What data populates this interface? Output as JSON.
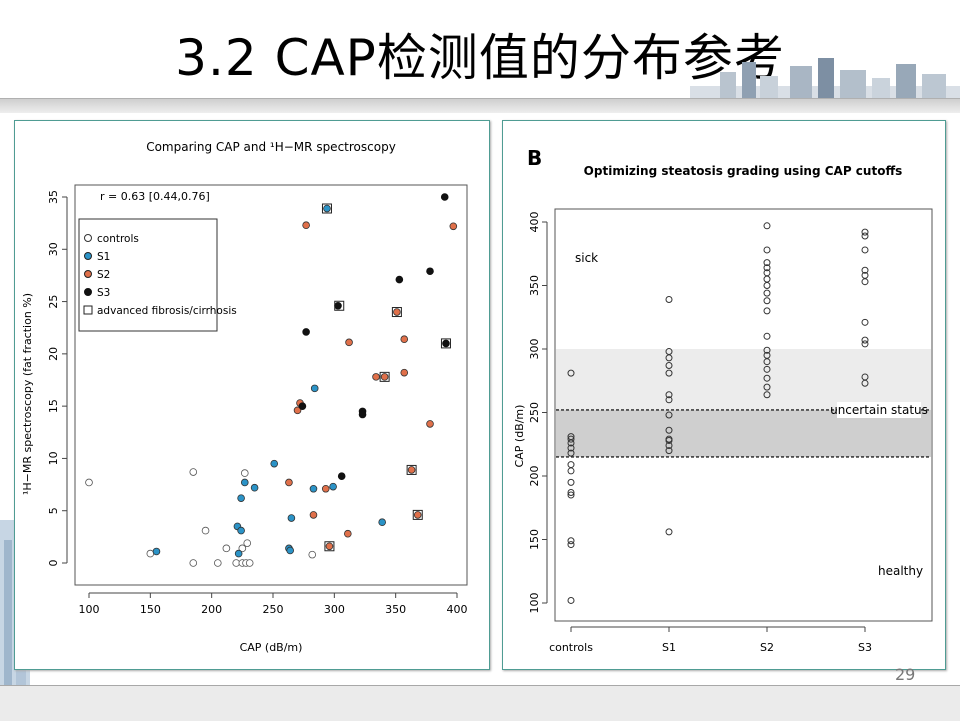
{
  "slide": {
    "title": "3.2 CAP检测值的分布参考",
    "page_number": "29"
  },
  "colors": {
    "controls": "#ffffff",
    "S1": "#2b93c7",
    "S2": "#e0704a",
    "S3": "#111111",
    "shade_light": "#ececec",
    "shade_dark": "#cfcfcf"
  },
  "chart_data": [
    {
      "type": "scatter",
      "title": "Comparing CAP and ¹H−MR spectroscopy",
      "xlabel": "CAP (dB/m)",
      "ylabel": "¹H−MR spectroscopy (fat fraction %)",
      "xlim": [
        100,
        400
      ],
      "ylim": [
        0,
        35
      ],
      "xticks": [
        100,
        150,
        200,
        250,
        300,
        350,
        400
      ],
      "yticks": [
        0,
        5,
        10,
        15,
        20,
        25,
        30,
        35
      ],
      "annotation": "r = 0.63  [0.44,0.76]",
      "legend_position": "top-left",
      "legend": [
        "controls",
        "S1",
        "S2",
        "S3",
        "advanced fibrosis/cirrhosis"
      ],
      "series": [
        {
          "name": "controls",
          "points": [
            [
              100,
              7.7
            ],
            [
              150,
              0.9
            ],
            [
              185,
              8.7
            ],
            [
              185,
              0
            ],
            [
              195,
              3.1
            ],
            [
              205,
              0
            ],
            [
              212,
              1.4
            ],
            [
              220,
              0
            ],
            [
              225,
              1.4
            ],
            [
              225,
              0
            ],
            [
              227,
              8.6
            ],
            [
              228,
              0
            ],
            [
              229,
              1.9
            ],
            [
              231,
              0
            ],
            [
              282,
              0.8
            ]
          ]
        },
        {
          "name": "S1",
          "points": [
            [
              155,
              1.1
            ],
            [
              221,
              3.5
            ],
            [
              222,
              0.9
            ],
            [
              224,
              3.1
            ],
            [
              224,
              6.2
            ],
            [
              227,
              7.7
            ],
            [
              235,
              7.2
            ],
            [
              251,
              9.5
            ],
            [
              263,
              1.4
            ],
            [
              264,
              1.2
            ],
            [
              265,
              4.3
            ],
            [
              283,
              7.1
            ],
            [
              284,
              16.7
            ],
            [
              294,
              33.9
            ],
            [
              299,
              7.3
            ],
            [
              339,
              3.9
            ]
          ]
        },
        {
          "name": "S2",
          "points": [
            [
              263,
              7.7
            ],
            [
              270,
              14.6
            ],
            [
              272,
              15.3
            ],
            [
              277,
              32.3
            ],
            [
              283,
              4.6
            ],
            [
              293,
              7.1
            ],
            [
              296,
              1.6
            ],
            [
              311,
              2.8
            ],
            [
              312,
              21.1
            ],
            [
              334,
              17.8
            ],
            [
              341,
              17.8
            ],
            [
              351,
              24.0
            ],
            [
              357,
              18.2
            ],
            [
              357,
              21.4
            ],
            [
              363,
              8.9
            ],
            [
              368,
              4.6
            ],
            [
              378,
              13.3
            ],
            [
              397,
              32.2
            ]
          ]
        },
        {
          "name": "S3",
          "points": [
            [
              274,
              15.0
            ],
            [
              277,
              22.1
            ],
            [
              303,
              24.6
            ],
            [
              306,
              8.3
            ],
            [
              323,
              14.5
            ],
            [
              323,
              14.2
            ],
            [
              353,
              27.1
            ],
            [
              378,
              27.9
            ],
            [
              390,
              35.0
            ],
            [
              391,
              21.0
            ]
          ]
        },
        {
          "name": "advanced fibrosis/cirrhosis",
          "points": [
            [
              294,
              33.9
            ],
            [
              296,
              1.6
            ],
            [
              304,
              24.6
            ],
            [
              341,
              17.8
            ],
            [
              351,
              24.0
            ],
            [
              363,
              8.9
            ],
            [
              368,
              4.6
            ],
            [
              391,
              21.0
            ]
          ]
        }
      ]
    },
    {
      "type": "scatter",
      "panel_label": "B",
      "title": "Optimizing steatosis grading using CAP cutoffs",
      "xlabel": "",
      "ylabel": "CAP (dB/m)",
      "categories": [
        "controls",
        "S1",
        "S2",
        "S3"
      ],
      "ylim": [
        100,
        400
      ],
      "yticks": [
        100,
        150,
        200,
        250,
        300,
        350,
        400
      ],
      "cutoffs": [
        215,
        252
      ],
      "uncertain_band": [
        215,
        300
      ],
      "labels": {
        "sick": "sick",
        "uncertain": "uncertain status",
        "healthy": "healthy"
      },
      "series": [
        {
          "name": "controls",
          "values": [
            102,
            146,
            149,
            185,
            187,
            195,
            204,
            209,
            218,
            222,
            226,
            229,
            231,
            281
          ]
        },
        {
          "name": "S1",
          "values": [
            156,
            220,
            224,
            228,
            229,
            236,
            248,
            260,
            264,
            281,
            287,
            293,
            298,
            339
          ]
        },
        {
          "name": "S2",
          "values": [
            264,
            270,
            277,
            284,
            290,
            295,
            299,
            310,
            330,
            338,
            344,
            350,
            355,
            360,
            364,
            368,
            378,
            397
          ]
        },
        {
          "name": "S3",
          "values": [
            273,
            278,
            304,
            307,
            321,
            353,
            358,
            362,
            378,
            389,
            392
          ]
        }
      ]
    }
  ]
}
